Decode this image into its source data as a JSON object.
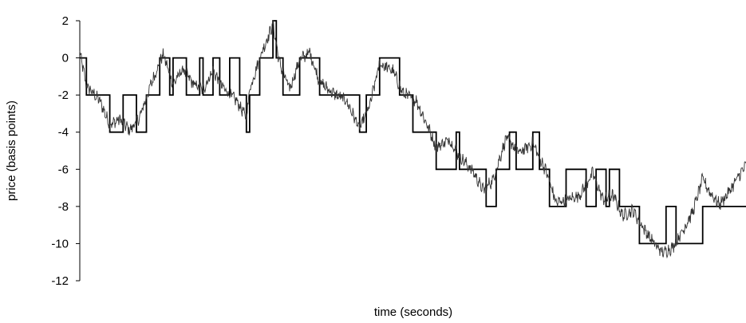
{
  "chart_data": {
    "type": "line",
    "title": "",
    "xlabel": "time (seconds)",
    "ylabel": "price (basis points)",
    "ylim": [
      -12,
      2
    ],
    "yticks": [
      2,
      0,
      -2,
      -4,
      -6,
      -8,
      -10,
      -12
    ],
    "ytick_labels": [
      "2",
      "0",
      "-2",
      "-4",
      "-6",
      "-8",
      "-10",
      "-12"
    ],
    "x_range": [
      0,
      1000
    ],
    "grid": false,
    "legend": "none",
    "series": [
      {
        "style": "step",
        "color": "#000000",
        "points": [
          [
            0,
            0
          ],
          [
            10,
            -2
          ],
          [
            45,
            -4
          ],
          [
            65,
            -2
          ],
          [
            85,
            -4
          ],
          [
            100,
            -2
          ],
          [
            120,
            0
          ],
          [
            135,
            -2
          ],
          [
            140,
            0
          ],
          [
            160,
            -2
          ],
          [
            180,
            0
          ],
          [
            185,
            -2
          ],
          [
            200,
            0
          ],
          [
            210,
            -2
          ],
          [
            225,
            0
          ],
          [
            240,
            -2
          ],
          [
            250,
            -4
          ],
          [
            255,
            -2
          ],
          [
            270,
            0
          ],
          [
            290,
            2
          ],
          [
            295,
            0
          ],
          [
            305,
            -2
          ],
          [
            330,
            0
          ],
          [
            360,
            -2
          ],
          [
            390,
            -2
          ],
          [
            420,
            -4
          ],
          [
            430,
            -2
          ],
          [
            450,
            0
          ],
          [
            480,
            -2
          ],
          [
            500,
            -4
          ],
          [
            530,
            -4
          ],
          [
            535,
            -6
          ],
          [
            565,
            -4
          ],
          [
            570,
            -6
          ],
          [
            610,
            -8
          ],
          [
            625,
            -6
          ],
          [
            645,
            -4
          ],
          [
            655,
            -6
          ],
          [
            680,
            -4
          ],
          [
            690,
            -6
          ],
          [
            705,
            -8
          ],
          [
            730,
            -6
          ],
          [
            760,
            -8
          ],
          [
            775,
            -6
          ],
          [
            790,
            -8
          ],
          [
            795,
            -6
          ],
          [
            810,
            -8
          ],
          [
            830,
            -8
          ],
          [
            840,
            -10
          ],
          [
            870,
            -10
          ],
          [
            880,
            -8
          ],
          [
            895,
            -10
          ],
          [
            915,
            -10
          ],
          [
            935,
            -8
          ],
          [
            1000,
            -8
          ]
        ]
      },
      {
        "style": "noisy",
        "color": "#333333",
        "anchors": [
          [
            0,
            0.3
          ],
          [
            10,
            -1.5
          ],
          [
            30,
            -2.3
          ],
          [
            45,
            -3.6
          ],
          [
            60,
            -3.3
          ],
          [
            75,
            -3.9
          ],
          [
            90,
            -3.2
          ],
          [
            105,
            -1.6
          ],
          [
            125,
            0.2
          ],
          [
            140,
            -1.4
          ],
          [
            155,
            -0.6
          ],
          [
            170,
            -1.4
          ],
          [
            185,
            -1.7
          ],
          [
            200,
            -0.7
          ],
          [
            215,
            -1.6
          ],
          [
            235,
            -2.3
          ],
          [
            250,
            -3.2
          ],
          [
            255,
            -1.7
          ],
          [
            270,
            0.0
          ],
          [
            290,
            1.8
          ],
          [
            300,
            -0.3
          ],
          [
            315,
            -1.7
          ],
          [
            330,
            -0.1
          ],
          [
            345,
            0.3
          ],
          [
            360,
            -1.3
          ],
          [
            380,
            -1.9
          ],
          [
            400,
            -2.3
          ],
          [
            420,
            -3.8
          ],
          [
            435,
            -2.6
          ],
          [
            450,
            -0.3
          ],
          [
            470,
            -0.7
          ],
          [
            485,
            -1.9
          ],
          [
            505,
            -2.3
          ],
          [
            520,
            -3.5
          ],
          [
            535,
            -4.8
          ],
          [
            555,
            -4.4
          ],
          [
            570,
            -5.3
          ],
          [
            590,
            -6.1
          ],
          [
            605,
            -7.1
          ],
          [
            620,
            -6.6
          ],
          [
            640,
            -4.3
          ],
          [
            660,
            -5.1
          ],
          [
            680,
            -4.6
          ],
          [
            700,
            -6.1
          ],
          [
            715,
            -7.8
          ],
          [
            735,
            -7.6
          ],
          [
            750,
            -7.4
          ],
          [
            770,
            -6.2
          ],
          [
            785,
            -7.6
          ],
          [
            800,
            -7.4
          ],
          [
            815,
            -8.5
          ],
          [
            830,
            -8.2
          ],
          [
            845,
            -9.1
          ],
          [
            860,
            -9.9
          ],
          [
            875,
            -10.5
          ],
          [
            890,
            -10.2
          ],
          [
            905,
            -9.3
          ],
          [
            920,
            -8.3
          ],
          [
            935,
            -6.5
          ],
          [
            945,
            -7.2
          ],
          [
            960,
            -7.9
          ],
          [
            975,
            -7.2
          ],
          [
            990,
            -6.3
          ],
          [
            1000,
            -5.8
          ]
        ]
      }
    ]
  }
}
